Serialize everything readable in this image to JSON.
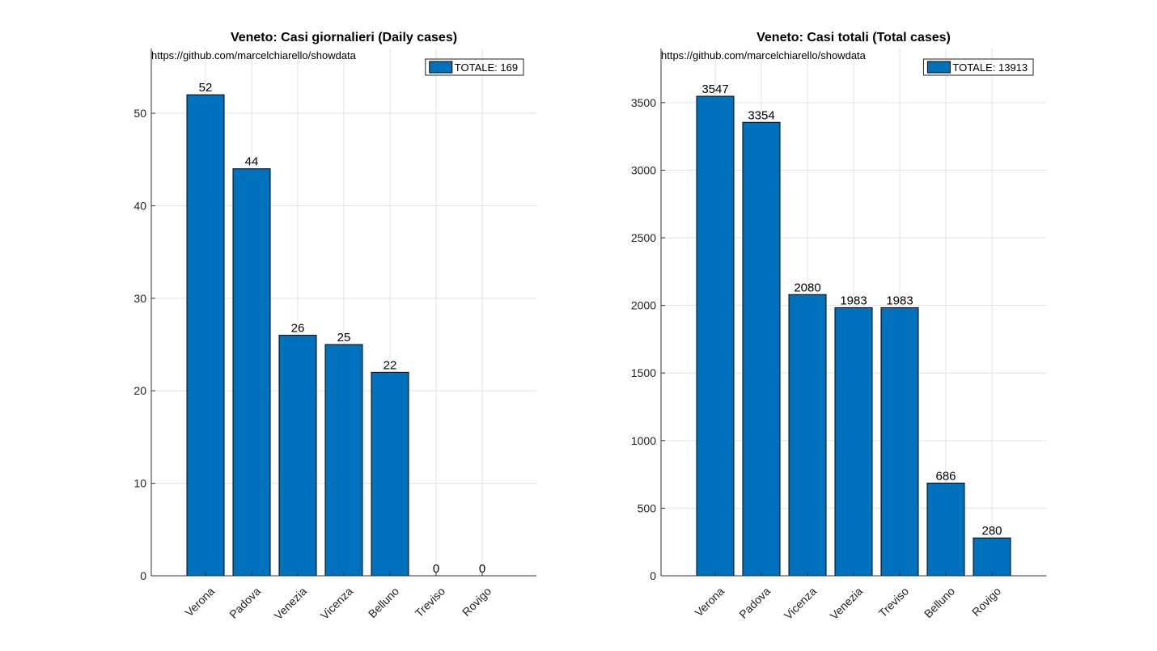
{
  "chart_data": [
    {
      "type": "bar",
      "title": "Veneto: Casi giornalieri (Daily cases)",
      "source": "https://github.com/marcelchiarello/showdata",
      "legend": "TOTALE: 169",
      "legend_position": "top-right",
      "categories": [
        "Verona",
        "Padova",
        "Venezia",
        "Vicenza",
        "Belluno",
        "Treviso",
        "Rovigo"
      ],
      "values": [
        52,
        44,
        26,
        25,
        22,
        0,
        0
      ],
      "yticks": [
        0,
        10,
        20,
        30,
        40,
        50
      ],
      "ylim": [
        0,
        57
      ],
      "grid": true,
      "color": "#0072BD"
    },
    {
      "type": "bar",
      "title": "Veneto: Casi totali (Total cases)",
      "source": "https://github.com/marcelchiarello/showdata",
      "legend": "TOTALE: 13913",
      "legend_position": "top-right",
      "categories": [
        "Verona",
        "Padova",
        "Vicenza",
        "Venezia",
        "Treviso",
        "Belluno",
        "Rovigo"
      ],
      "values": [
        3547,
        3354,
        2080,
        1983,
        1983,
        686,
        280
      ],
      "yticks": [
        0,
        500,
        1000,
        1500,
        2000,
        2500,
        3000,
        3500
      ],
      "ylim": [
        0,
        3900
      ],
      "grid": true,
      "color": "#0072BD"
    }
  ]
}
